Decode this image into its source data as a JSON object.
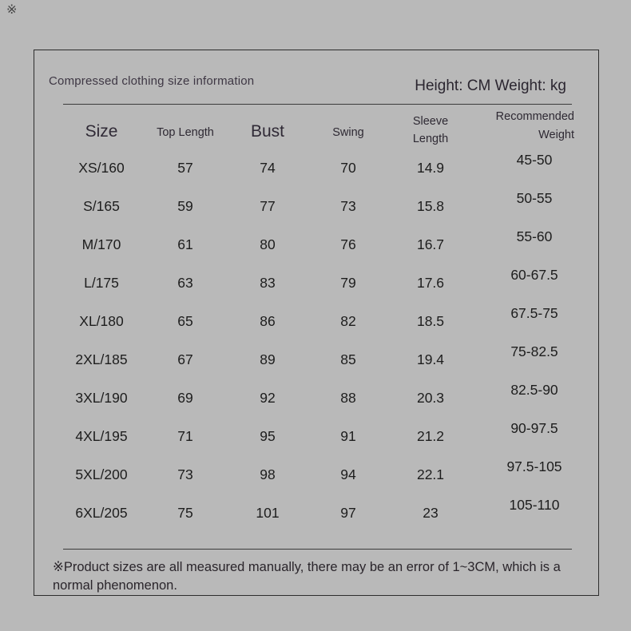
{
  "page": {
    "corner_mark": "※"
  },
  "colors": {
    "background": "#b9b9b9",
    "card_border": "#2d2d2d",
    "divider": "#3b3b3b",
    "title_text": "#3e3744",
    "header_text": "#2e2933",
    "data_text": "#1d1d1d"
  },
  "chart_data": {
    "type": "table",
    "title": "Compressed clothing size information",
    "units_note": "Height: CM Weight: kg",
    "columns": [
      "Size",
      "Top Length",
      "Bust",
      "Swing",
      "Sleeve Length",
      "Recommended Weight"
    ],
    "header_lines": [
      [
        "Size"
      ],
      [
        "Top Length"
      ],
      [
        "Bust"
      ],
      [
        "Swing"
      ],
      [
        "Sleeve",
        "Length"
      ],
      [
        "Recommended",
        "Weight"
      ]
    ],
    "rows": [
      [
        "XS/160",
        "57",
        "74",
        "70",
        "14.9",
        "45-50"
      ],
      [
        "S/165",
        "59",
        "77",
        "73",
        "15.8",
        "50-55"
      ],
      [
        "M/170",
        "61",
        "80",
        "76",
        "16.7",
        "55-60"
      ],
      [
        "L/175",
        "63",
        "83",
        "79",
        "17.6",
        "60-67.5"
      ],
      [
        "XL/180",
        "65",
        "86",
        "82",
        "18.5",
        "67.5-75"
      ],
      [
        "2XL/185",
        "67",
        "89",
        "85",
        "19.4",
        "75-82.5"
      ],
      [
        "3XL/190",
        "69",
        "92",
        "88",
        "20.3",
        "82.5-90"
      ],
      [
        "4XL/195",
        "71",
        "95",
        "91",
        "21.2",
        "90-97.5"
      ],
      [
        "5XL/200",
        "73",
        "98",
        "94",
        "22.1",
        "97.5-105"
      ],
      [
        "6XL/205",
        "75",
        "101",
        "97",
        "23",
        "105-110"
      ]
    ],
    "footnote": {
      "line1": "※Product sizes are all measured manually, there may be an error of 1~3CM, which is a",
      "line2": "normal phenomenon."
    }
  }
}
